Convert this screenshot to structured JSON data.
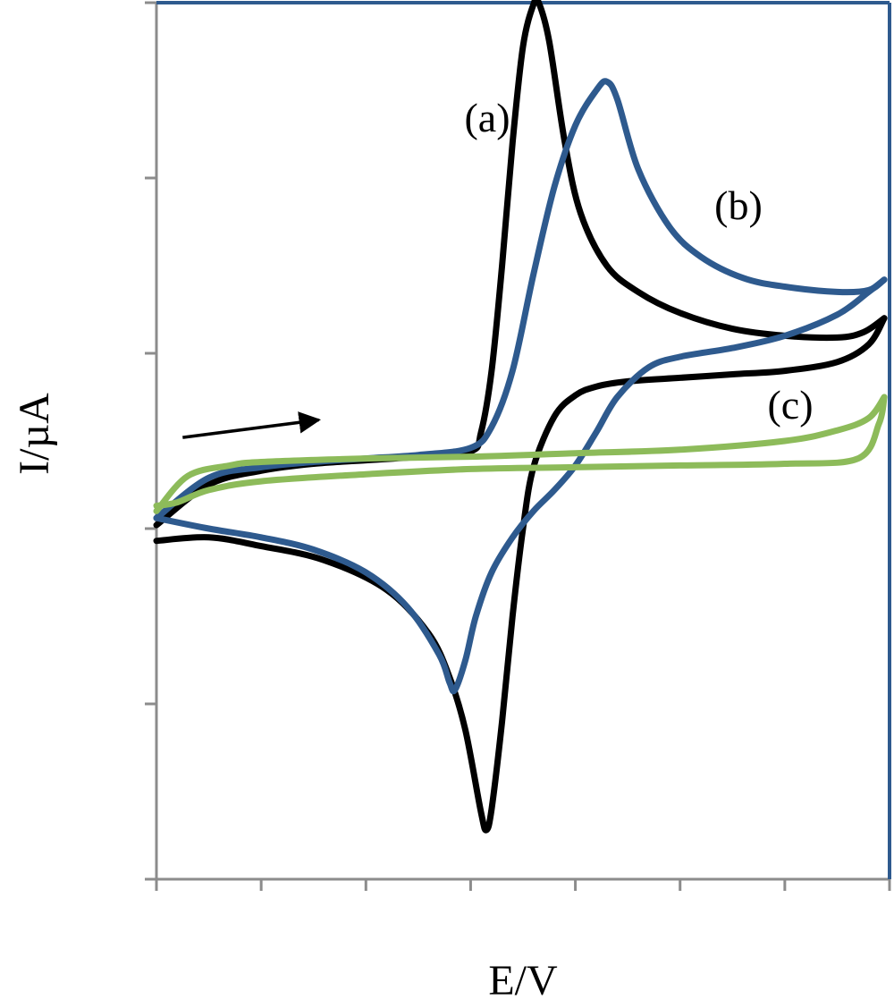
{
  "chart_data": {
    "type": "line",
    "xlabel": "E/V",
    "ylabel": "I/µA",
    "xlim": [
      0,
      7
    ],
    "ylim": [
      -2,
      3
    ],
    "x_tick_count": 8,
    "y_tick_count": 6,
    "tick_labels_shown": false,
    "grid": false,
    "legend": "none",
    "scan_direction_arrow": {
      "from": [
        0.25,
        0.52
      ],
      "to": [
        1.55,
        0.62
      ]
    },
    "series": [
      {
        "name": "(a)",
        "color": "#000000",
        "forward": [
          [
            0,
            0.02
          ],
          [
            0.5,
            0.25
          ],
          [
            1,
            0.33
          ],
          [
            1.5,
            0.37
          ],
          [
            2,
            0.39
          ],
          [
            2.5,
            0.41
          ],
          [
            3,
            0.44
          ],
          [
            3.1,
            0.55
          ],
          [
            3.2,
            0.9
          ],
          [
            3.3,
            1.5
          ],
          [
            3.4,
            2.2
          ],
          [
            3.5,
            2.75
          ],
          [
            3.6,
            2.99
          ],
          [
            3.65,
            3.0
          ],
          [
            3.75,
            2.78
          ],
          [
            3.9,
            2.2
          ],
          [
            4.05,
            1.8
          ],
          [
            4.3,
            1.5
          ],
          [
            4.6,
            1.35
          ],
          [
            5,
            1.23
          ],
          [
            5.5,
            1.14
          ],
          [
            6,
            1.1
          ],
          [
            6.5,
            1.09
          ],
          [
            6.75,
            1.12
          ],
          [
            6.95,
            1.2
          ]
        ],
        "reverse": [
          [
            6.95,
            1.2
          ],
          [
            6.8,
            1.05
          ],
          [
            6.5,
            0.95
          ],
          [
            6,
            0.9
          ],
          [
            5.5,
            0.88
          ],
          [
            5,
            0.86
          ],
          [
            4.5,
            0.84
          ],
          [
            4.2,
            0.81
          ],
          [
            4,
            0.76
          ],
          [
            3.8,
            0.64
          ],
          [
            3.6,
            0.35
          ],
          [
            3.5,
            0.0
          ],
          [
            3.4,
            -0.5
          ],
          [
            3.3,
            -1.1
          ],
          [
            3.2,
            -1.6
          ],
          [
            3.15,
            -1.72
          ],
          [
            3.1,
            -1.62
          ],
          [
            2.95,
            -1.15
          ],
          [
            2.8,
            -0.85
          ],
          [
            2.6,
            -0.6
          ],
          [
            2.2,
            -0.35
          ],
          [
            1.6,
            -0.18
          ],
          [
            1,
            -0.1
          ],
          [
            0.5,
            -0.05
          ],
          [
            0,
            -0.07
          ]
        ]
      },
      {
        "name": "(b)",
        "color": "#2e5a8e",
        "forward": [
          [
            0,
            0.06
          ],
          [
            0.5,
            0.29
          ],
          [
            1,
            0.35
          ],
          [
            1.5,
            0.38
          ],
          [
            2,
            0.4
          ],
          [
            2.5,
            0.42
          ],
          [
            3,
            0.46
          ],
          [
            3.2,
            0.58
          ],
          [
            3.4,
            0.9
          ],
          [
            3.6,
            1.45
          ],
          [
            3.8,
            1.95
          ],
          [
            4,
            2.3
          ],
          [
            4.2,
            2.5
          ],
          [
            4.3,
            2.55
          ],
          [
            4.4,
            2.45
          ],
          [
            4.6,
            2.05
          ],
          [
            4.9,
            1.72
          ],
          [
            5.2,
            1.55
          ],
          [
            5.6,
            1.43
          ],
          [
            6,
            1.38
          ],
          [
            6.5,
            1.35
          ],
          [
            6.8,
            1.36
          ],
          [
            6.95,
            1.42
          ]
        ],
        "reverse": [
          [
            6.95,
            1.42
          ],
          [
            6.8,
            1.35
          ],
          [
            6.5,
            1.22
          ],
          [
            6,
            1.1
          ],
          [
            5.5,
            1.03
          ],
          [
            5,
            0.98
          ],
          [
            4.7,
            0.92
          ],
          [
            4.4,
            0.75
          ],
          [
            4.2,
            0.55
          ],
          [
            4,
            0.36
          ],
          [
            3.8,
            0.22
          ],
          [
            3.6,
            0.1
          ],
          [
            3.4,
            -0.05
          ],
          [
            3.2,
            -0.25
          ],
          [
            3.05,
            -0.5
          ],
          [
            2.95,
            -0.75
          ],
          [
            2.85,
            -0.92
          ],
          [
            2.8,
            -0.88
          ],
          [
            2.7,
            -0.72
          ],
          [
            2.4,
            -0.45
          ],
          [
            2,
            -0.25
          ],
          [
            1.5,
            -0.12
          ],
          [
            1,
            -0.05
          ],
          [
            0.5,
            0.0
          ],
          [
            0,
            0.06
          ]
        ]
      },
      {
        "name": "(c)",
        "color": "#8dbb5a",
        "forward": [
          [
            0,
            0.1
          ],
          [
            0.3,
            0.3
          ],
          [
            0.7,
            0.36
          ],
          [
            1,
            0.38
          ],
          [
            2,
            0.4
          ],
          [
            3,
            0.41
          ],
          [
            4,
            0.43
          ],
          [
            5,
            0.45
          ],
          [
            6,
            0.5
          ],
          [
            6.5,
            0.56
          ],
          [
            6.8,
            0.63
          ],
          [
            6.95,
            0.75
          ]
        ],
        "reverse": [
          [
            6.95,
            0.75
          ],
          [
            6.9,
            0.6
          ],
          [
            6.7,
            0.4
          ],
          [
            6,
            0.37
          ],
          [
            5,
            0.36
          ],
          [
            4,
            0.35
          ],
          [
            3,
            0.34
          ],
          [
            2,
            0.31
          ],
          [
            1,
            0.27
          ],
          [
            0.5,
            0.22
          ],
          [
            0.2,
            0.15
          ],
          [
            0,
            0.13
          ]
        ]
      }
    ],
    "labels": [
      {
        "text": "(a)",
        "series": 0
      },
      {
        "text": "(b)",
        "series": 1
      },
      {
        "text": "(c)",
        "series": 2
      }
    ]
  }
}
